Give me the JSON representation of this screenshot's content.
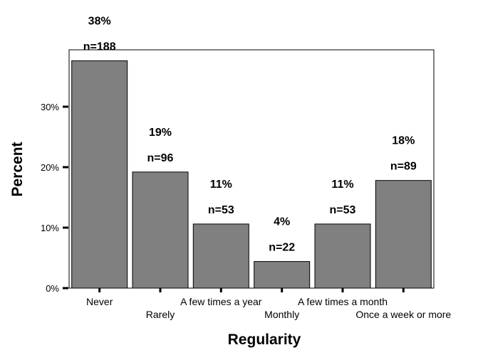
{
  "chart_data": {
    "type": "bar",
    "categories": [
      "Never",
      "Rarely",
      "A few times a year",
      "Monthly",
      "A few times a month",
      "Once a week or more"
    ],
    "values": [
      37.6,
      19.2,
      10.6,
      4.4,
      10.6,
      17.8
    ],
    "percent_labels": [
      "38%",
      "19%",
      "11%",
      "4%",
      "11%",
      "18%"
    ],
    "count_labels": [
      "n=188",
      "n=96",
      "n=53",
      "n=22",
      "n=53",
      "n=89"
    ],
    "xlabel": "Regularity",
    "ylabel": "Percent",
    "yticks": [
      0,
      10,
      20,
      30
    ],
    "ytick_labels": [
      "0%",
      "10%",
      "20%",
      "30%"
    ],
    "ylim": [
      0,
      39
    ],
    "bar_color": "#808080",
    "grid": false,
    "legend": "none"
  }
}
